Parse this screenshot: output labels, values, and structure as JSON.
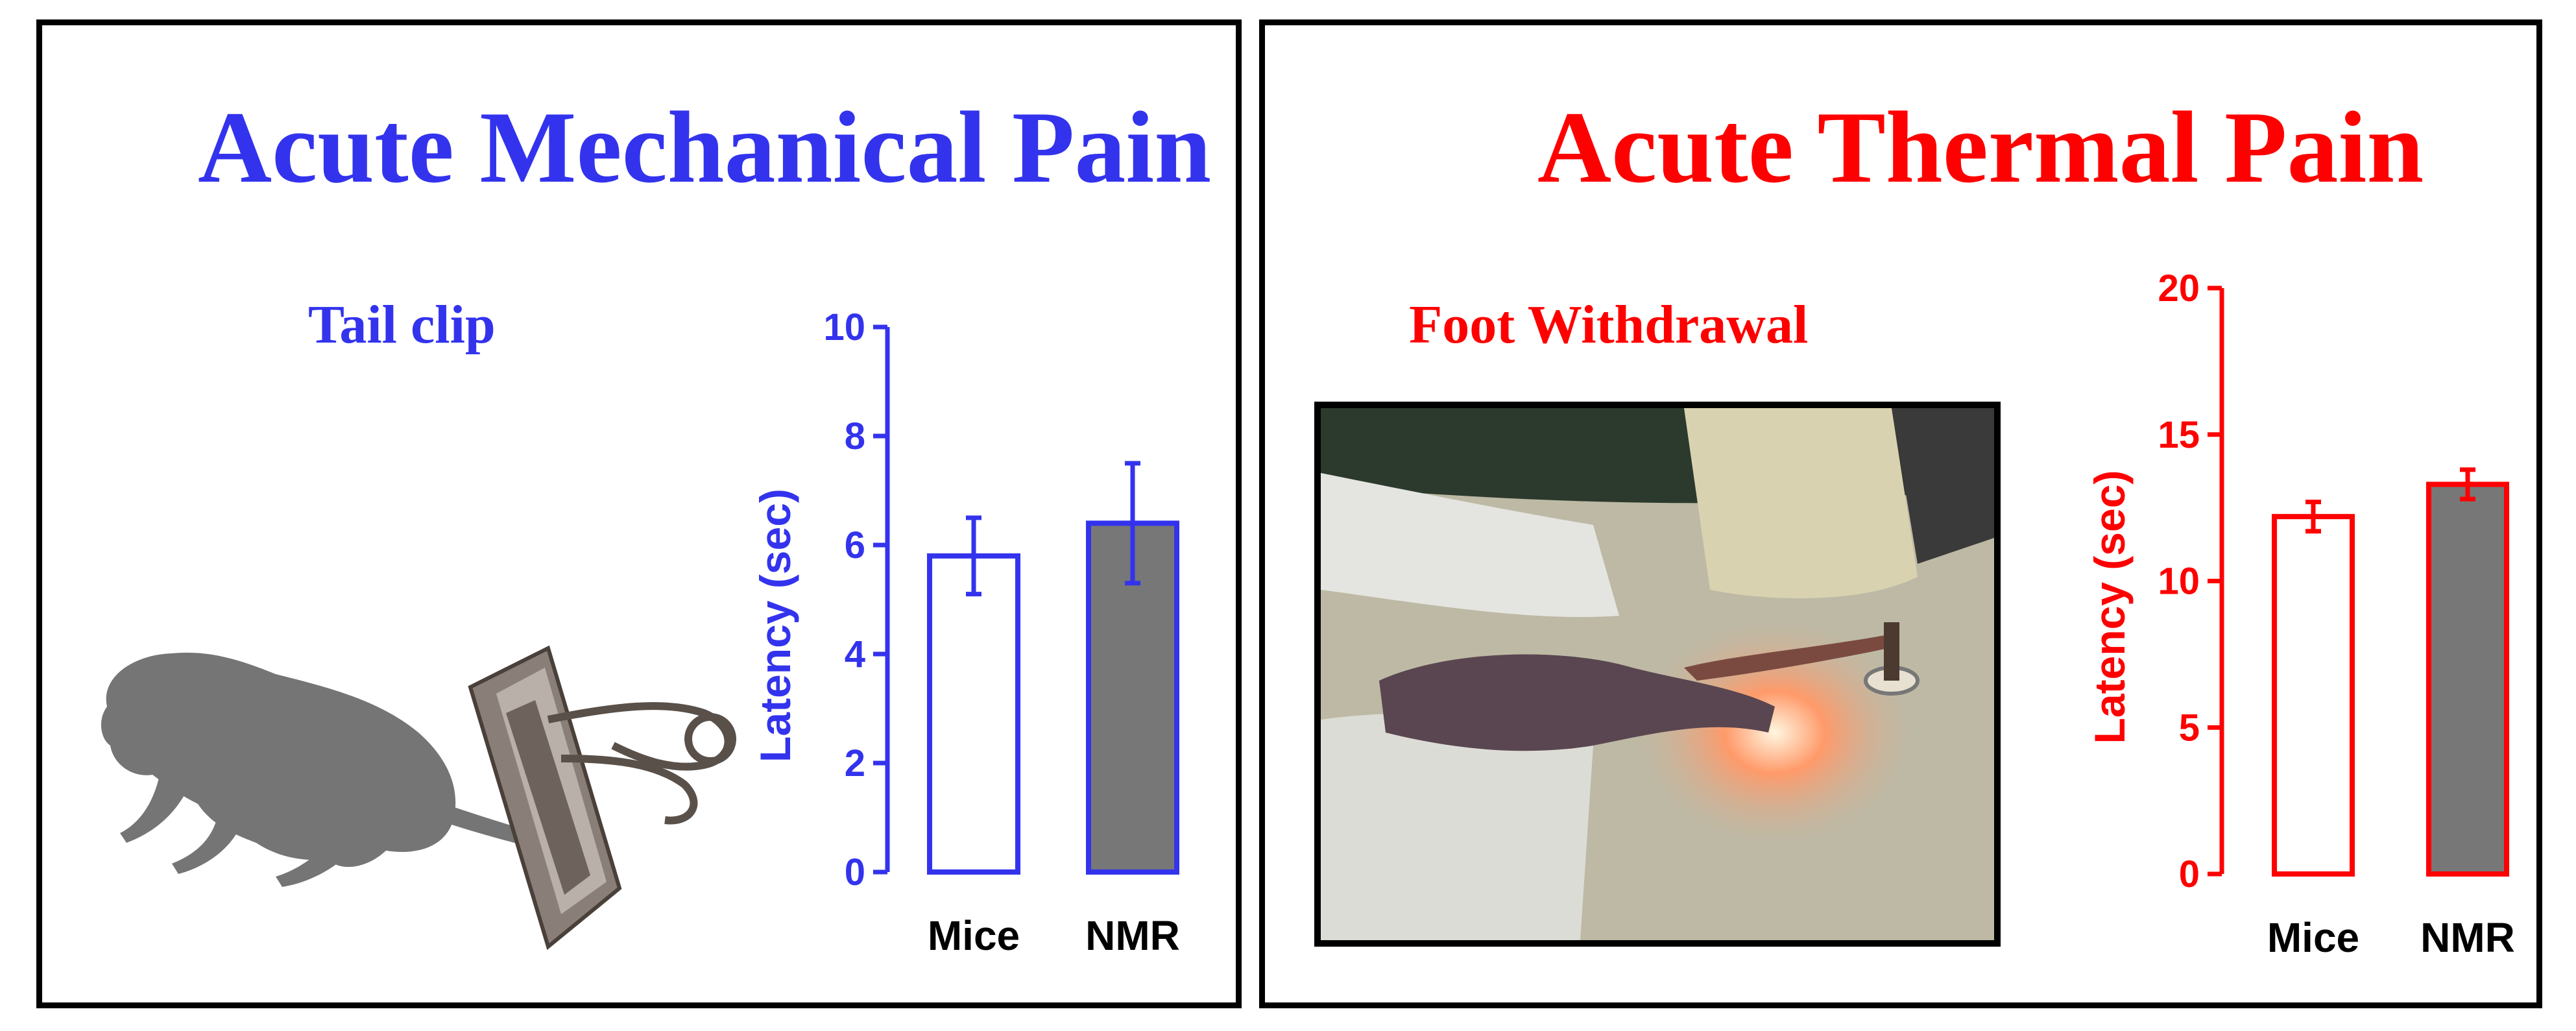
{
  "panels": {
    "left": {
      "title": "Acute Mechanical Pain",
      "subtitle": "Tail clip",
      "color": "#3333EE"
    },
    "right": {
      "title": "Acute Thermal Pain",
      "subtitle": "Foot Withdrawal",
      "color": "#FF0000"
    }
  },
  "chart_data": [
    {
      "type": "bar",
      "categories": [
        "Mice",
        "NMR"
      ],
      "values": [
        5.8,
        6.4
      ],
      "error": [
        0.7,
        1.1
      ],
      "bar_fill": [
        "#ffffff",
        "#777777"
      ],
      "ylabel": "Latency (sec)",
      "ylim": [
        0,
        10
      ],
      "yticks": [
        0,
        2,
        4,
        6,
        8,
        10
      ],
      "color": "#3333EE",
      "grid": false
    },
    {
      "type": "bar",
      "categories": [
        "Mice",
        "NMR"
      ],
      "values": [
        12.2,
        13.3
      ],
      "error": [
        0.5,
        0.5
      ],
      "bar_fill": [
        "#ffffff",
        "#777777"
      ],
      "ylabel": "Latency (sec)",
      "ylim": [
        0,
        20
      ],
      "yticks": [
        0,
        5,
        10,
        15,
        20
      ],
      "color": "#FF0000",
      "grid": false
    }
  ]
}
